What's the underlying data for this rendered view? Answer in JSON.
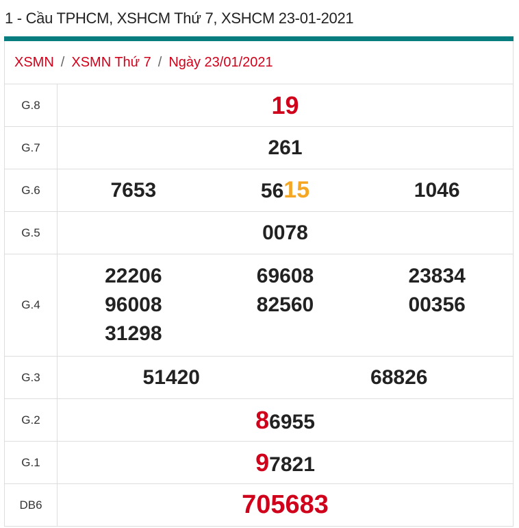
{
  "title": "1 - Cầu TPHCM, XSHCM Thứ 7, XSHCM 23-01-2021",
  "breadcrumb": [
    "XSMN",
    "XSMN Thứ 7",
    "Ngày 23/01/2021"
  ],
  "breadcrumb_sep": "/",
  "colors": {
    "accent": "#077d80",
    "red": "#d0021b",
    "orange": "#f5a623"
  },
  "prizes": {
    "g8": {
      "label": "G.8",
      "value": "19"
    },
    "g7": {
      "label": "G.7",
      "value": "261"
    },
    "g6": {
      "label": "G.6",
      "values": [
        "7653",
        "5615",
        "1046"
      ],
      "v2_prefix": "56",
      "v2_highlight": "15"
    },
    "g5": {
      "label": "G.5",
      "value": "0078"
    },
    "g4": {
      "label": "G.4",
      "values": [
        "22206",
        "69608",
        "23834",
        "96008",
        "82560",
        "00356",
        "31298"
      ]
    },
    "g3": {
      "label": "G.3",
      "values": [
        "51420",
        "68826"
      ]
    },
    "g2": {
      "label": "G.2",
      "value": "86955",
      "head": "8",
      "rest": "6955"
    },
    "g1": {
      "label": "G.1",
      "value": "97821",
      "head": "9",
      "rest": "7821"
    },
    "db": {
      "label": "DB6",
      "value": "705683"
    }
  }
}
